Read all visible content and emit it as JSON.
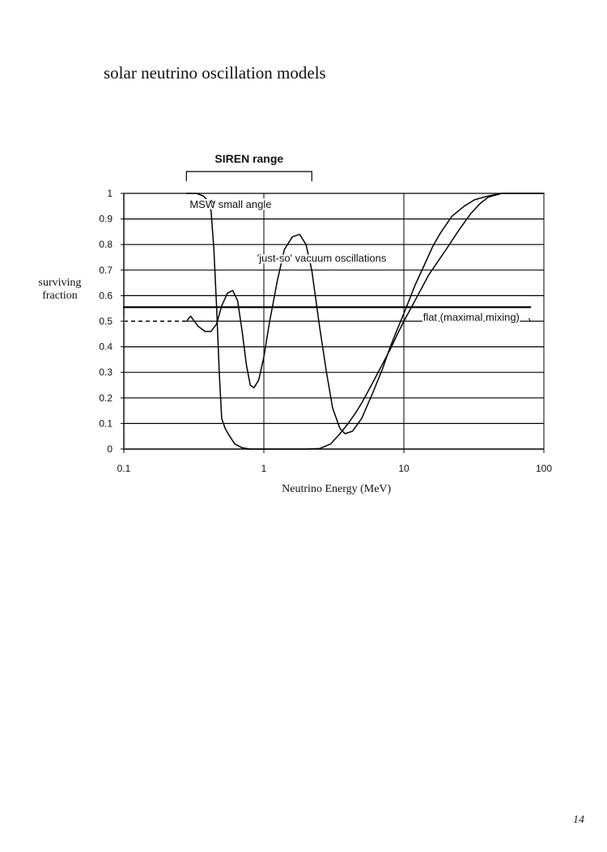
{
  "page": {
    "title": "solar neutrino oscillation models",
    "page_number": "14"
  },
  "chart_data": {
    "type": "line",
    "x_scale": "log",
    "xlim": [
      0.1,
      100
    ],
    "ylim": [
      0,
      1
    ],
    "grid": "horizontal at every 0.1, vertical at each decade",
    "xlabel": "Neutrino Energy (MeV)",
    "ylabel_lines": [
      "surviving",
      "fraction"
    ],
    "x_ticks": [
      {
        "value": 0.1,
        "label": "0.1"
      },
      {
        "value": 1,
        "label": "1"
      },
      {
        "value": 10,
        "label": "10"
      },
      {
        "value": 100,
        "label": "100"
      }
    ],
    "y_ticks": [
      {
        "value": 0,
        "label": "0"
      },
      {
        "value": 0.1,
        "label": "0.1"
      },
      {
        "value": 0.2,
        "label": "0.2"
      },
      {
        "value": 0.3,
        "label": "0.3"
      },
      {
        "value": 0.4,
        "label": "0.4"
      },
      {
        "value": 0.5,
        "label": "0.5"
      },
      {
        "value": 0.6,
        "label": "0.6"
      },
      {
        "value": 0.7,
        "label": "0.7"
      },
      {
        "value": 0.8,
        "label": "0.8"
      },
      {
        "value": 0.9,
        "label": "0.9"
      },
      {
        "value": 1,
        "label": "1"
      }
    ],
    "range_bracket": {
      "label": "SIREN range",
      "x_start": 0.28,
      "x_end": 2.2
    },
    "series": [
      {
        "id": "msw",
        "name": "MSW small angle",
        "label_anchor": {
          "x": 0.28,
          "y": 0.955
        },
        "points": [
          [
            0.28,
            1.0
          ],
          [
            0.33,
            1.0
          ],
          [
            0.37,
            0.99
          ],
          [
            0.4,
            0.97
          ],
          [
            0.42,
            0.93
          ],
          [
            0.44,
            0.78
          ],
          [
            0.46,
            0.55
          ],
          [
            0.48,
            0.3
          ],
          [
            0.5,
            0.12
          ],
          [
            0.53,
            0.08
          ],
          [
            0.57,
            0.05
          ],
          [
            0.62,
            0.02
          ],
          [
            0.7,
            0.005
          ],
          [
            0.8,
            0.0
          ],
          [
            1.0,
            0.0
          ],
          [
            1.5,
            0.0
          ],
          [
            2.0,
            0.0
          ],
          [
            2.5,
            0.002
          ],
          [
            3.0,
            0.02
          ],
          [
            3.5,
            0.06
          ],
          [
            4.0,
            0.1
          ],
          [
            4.5,
            0.14
          ],
          [
            5.0,
            0.18
          ],
          [
            6.0,
            0.26
          ],
          [
            7.0,
            0.33
          ],
          [
            8.0,
            0.39
          ],
          [
            9.0,
            0.45
          ],
          [
            10.0,
            0.5
          ],
          [
            12.0,
            0.58
          ],
          [
            15.0,
            0.68
          ],
          [
            20.0,
            0.78
          ],
          [
            25.0,
            0.86
          ],
          [
            30.0,
            0.92
          ],
          [
            35.0,
            0.96
          ],
          [
            40.0,
            0.985
          ],
          [
            50.0,
            1.0
          ],
          [
            60.0,
            1.0
          ],
          [
            100.0,
            1.0
          ]
        ]
      },
      {
        "id": "justso",
        "name": "'just-so' vacuum oscillations",
        "label_anchor": {
          "x": 0.85,
          "y": 0.745
        },
        "points": [
          [
            0.1,
            0.5
          ],
          [
            0.28,
            0.5
          ],
          [
            0.3,
            0.52
          ],
          [
            0.34,
            0.48
          ],
          [
            0.38,
            0.46
          ],
          [
            0.42,
            0.46
          ],
          [
            0.46,
            0.49
          ],
          [
            0.5,
            0.56
          ],
          [
            0.55,
            0.61
          ],
          [
            0.6,
            0.62
          ],
          [
            0.65,
            0.58
          ],
          [
            0.7,
            0.46
          ],
          [
            0.75,
            0.33
          ],
          [
            0.8,
            0.25
          ],
          [
            0.85,
            0.24
          ],
          [
            0.92,
            0.27
          ],
          [
            1.0,
            0.36
          ],
          [
            1.1,
            0.5
          ],
          [
            1.25,
            0.66
          ],
          [
            1.4,
            0.78
          ],
          [
            1.6,
            0.83
          ],
          [
            1.8,
            0.84
          ],
          [
            2.0,
            0.8
          ],
          [
            2.2,
            0.7
          ],
          [
            2.5,
            0.48
          ],
          [
            2.8,
            0.3
          ],
          [
            3.1,
            0.16
          ],
          [
            3.5,
            0.08
          ],
          [
            3.8,
            0.06
          ],
          [
            4.3,
            0.07
          ],
          [
            5.0,
            0.12
          ],
          [
            6.0,
            0.22
          ],
          [
            7.0,
            0.31
          ],
          [
            8.0,
            0.4
          ],
          [
            9.0,
            0.47
          ],
          [
            10.0,
            0.53
          ],
          [
            12.0,
            0.64
          ],
          [
            14.0,
            0.72
          ],
          [
            16.0,
            0.79
          ],
          [
            18.0,
            0.84
          ],
          [
            22.0,
            0.91
          ],
          [
            27.0,
            0.95
          ],
          [
            32.0,
            0.975
          ],
          [
            40.0,
            0.99
          ],
          [
            50.0,
            1.0
          ],
          [
            100.0,
            1.0
          ]
        ]
      },
      {
        "id": "flat",
        "name": "flat  (maximal mixing)",
        "label_anchor": {
          "x": 13.0,
          "y": 0.515
        },
        "points": [
          [
            0.1,
            0.555
          ],
          [
            80.0,
            0.555
          ]
        ]
      }
    ]
  }
}
